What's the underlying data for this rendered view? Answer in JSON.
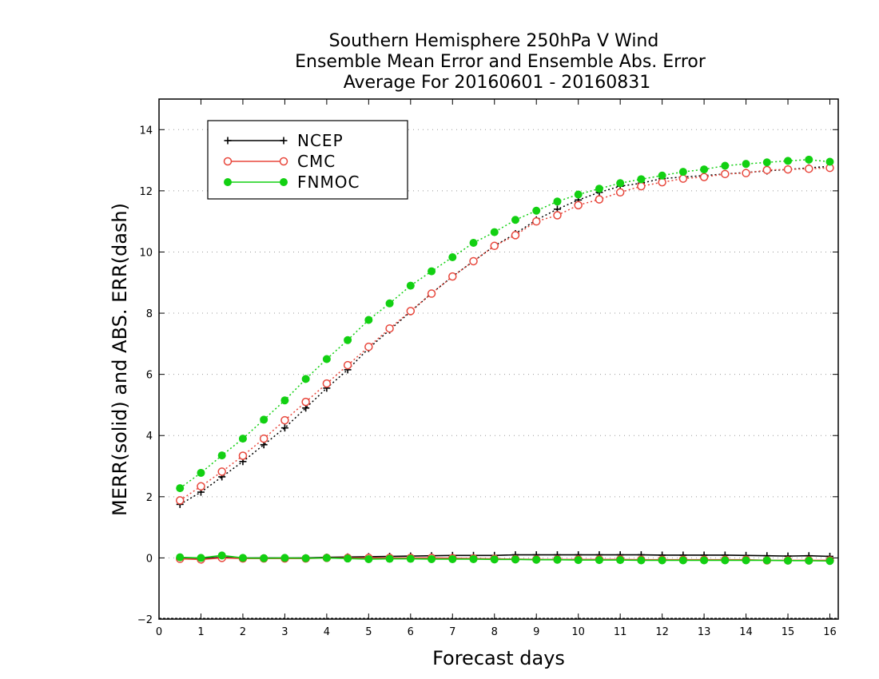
{
  "chart_data": {
    "type": "line",
    "title_lines": [
      "Southern Hemisphere 250hPa V Wind",
      "Ensemble Mean Error and Ensemble Abs. Error",
      "Average For 20160601 - 20160831"
    ],
    "xlabel": "Forecast days",
    "ylabel": "MERR(solid) and ABS. ERR(dash)",
    "xlim": [
      0,
      16.2
    ],
    "ylim": [
      -2,
      15
    ],
    "xticks": [
      "0",
      "1",
      "2",
      "3",
      "4",
      "5",
      "6",
      "7",
      "8",
      "9",
      "10",
      "11",
      "12",
      "13",
      "14",
      "15",
      "16"
    ],
    "yticks": [
      "−2",
      "0",
      "2",
      "4",
      "6",
      "8",
      "10",
      "12",
      "14"
    ],
    "grid": "horizontal-dotted",
    "legend_position": "top-left",
    "x": [
      0.5,
      1,
      1.5,
      2,
      2.5,
      3,
      3.5,
      4,
      4.5,
      5,
      5.5,
      6,
      6.5,
      7,
      7.5,
      8,
      8.5,
      9,
      9.5,
      10,
      10.5,
      11,
      11.5,
      12,
      12.5,
      13,
      13.5,
      14,
      14.5,
      15,
      15.5,
      16
    ],
    "series": [
      {
        "name": "NCEP",
        "color": "#000000",
        "marker": "plus",
        "abs_err": [
          1.75,
          2.15,
          2.65,
          3.15,
          3.7,
          4.25,
          4.9,
          5.55,
          6.15,
          6.85,
          7.45,
          8.05,
          8.65,
          9.2,
          9.7,
          10.2,
          10.6,
          11.05,
          11.4,
          11.7,
          11.95,
          12.15,
          12.25,
          12.4,
          12.45,
          12.5,
          12.55,
          12.6,
          12.65,
          12.7,
          12.75,
          12.8
        ],
        "mean_err": [
          0.0,
          -0.02,
          0.02,
          0.0,
          0.0,
          0.0,
          0.0,
          0.02,
          0.03,
          0.04,
          0.05,
          0.06,
          0.07,
          0.08,
          0.08,
          0.08,
          0.1,
          0.1,
          0.1,
          0.1,
          0.1,
          0.1,
          0.1,
          0.09,
          0.09,
          0.09,
          0.09,
          0.08,
          0.07,
          0.06,
          0.07,
          0.05
        ]
      },
      {
        "name": "CMC",
        "color": "#e8473c",
        "marker": "open-circle",
        "abs_err": [
          1.88,
          2.34,
          2.82,
          3.34,
          3.9,
          4.5,
          5.1,
          5.7,
          6.3,
          6.9,
          7.5,
          8.07,
          8.64,
          9.2,
          9.7,
          10.2,
          10.55,
          11.0,
          11.2,
          11.53,
          11.72,
          11.95,
          12.15,
          12.28,
          12.4,
          12.45,
          12.55,
          12.58,
          12.68,
          12.7,
          12.72,
          12.75
        ],
        "mean_err": [
          -0.03,
          -0.05,
          0.0,
          -0.02,
          -0.02,
          -0.02,
          -0.02,
          0.0,
          0.0,
          0.0,
          0.0,
          0.0,
          0.0,
          -0.01,
          -0.02,
          -0.03,
          -0.04,
          -0.05,
          -0.05,
          -0.05,
          -0.05,
          -0.05,
          -0.06,
          -0.06,
          -0.06,
          -0.06,
          -0.06,
          -0.06,
          -0.08,
          -0.08,
          -0.08,
          -0.08
        ]
      },
      {
        "name": "FNMOC",
        "color": "#12d012",
        "marker": "filled-circle",
        "abs_err": [
          2.28,
          2.78,
          3.35,
          3.9,
          4.52,
          5.15,
          5.85,
          6.5,
          7.12,
          7.78,
          8.32,
          8.9,
          9.37,
          9.83,
          10.3,
          10.65,
          11.05,
          11.35,
          11.65,
          11.88,
          12.07,
          12.25,
          12.38,
          12.5,
          12.62,
          12.7,
          12.82,
          12.88,
          12.93,
          12.98,
          13.02,
          12.95
        ],
        "mean_err": [
          0.02,
          0.0,
          0.08,
          0.0,
          -0.01,
          0.0,
          -0.01,
          0.0,
          -0.02,
          -0.04,
          -0.03,
          -0.03,
          -0.04,
          -0.04,
          -0.04,
          -0.05,
          -0.05,
          -0.06,
          -0.06,
          -0.07,
          -0.07,
          -0.07,
          -0.08,
          -0.08,
          -0.08,
          -0.08,
          -0.08,
          -0.08,
          -0.08,
          -0.09,
          -0.09,
          -0.1
        ]
      }
    ]
  }
}
